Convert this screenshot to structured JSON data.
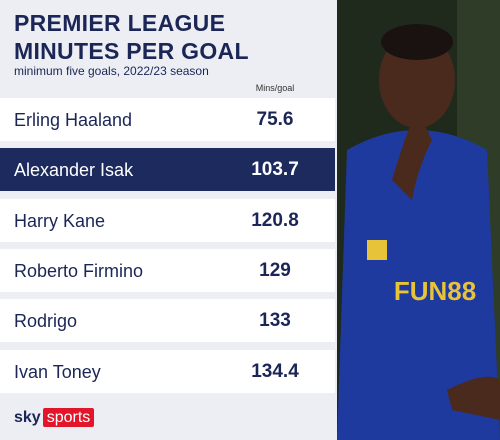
{
  "header": {
    "title_line1": "PREMIER LEAGUE",
    "title_line2": "MINUTES PER GOAL",
    "subtitle": "minimum five goals, 2022/23 season"
  },
  "table": {
    "column_header": "Mins/goal",
    "rows": [
      {
        "name": "Erling Haaland",
        "value": 75.6
      },
      {
        "name": "Alexander Isak",
        "value": 103.7,
        "highlighted": true
      },
      {
        "name": "Harry Kane",
        "value": 120.8
      },
      {
        "name": "Roberto Firmino",
        "value": 129
      },
      {
        "name": "Rodrigo",
        "value": 133
      },
      {
        "name": "Ivan Toney",
        "value": 134.4
      }
    ]
  },
  "footer": {
    "brand": "sky",
    "brand_sub": "sports"
  },
  "photo": {
    "shirt_sponsor": "FUN88"
  }
}
